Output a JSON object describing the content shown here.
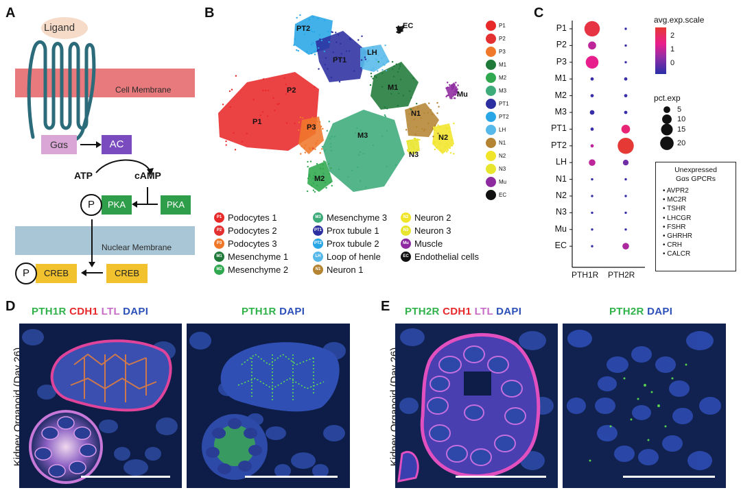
{
  "panels": {
    "a": "A",
    "b": "B",
    "c": "C",
    "d": "D",
    "e": "E"
  },
  "panel_a": {
    "ligand": "Ligand",
    "cell_membrane": "Cell Membrane",
    "nuclear_membrane": "Nuclear Membrane",
    "gas": "Gαs",
    "ac": "AC",
    "atp": "ATP",
    "camp": "cAMP",
    "pka": "PKA",
    "creb": "CREB",
    "p": "P",
    "colors": {
      "membrane": "#e8797c",
      "nuclear": "#a9c6d6",
      "gas": "#d9a6d6",
      "ac": "#7a4bbf",
      "pka": "#2f9e4a",
      "creb": "#f2c12e",
      "receptor": "#2b6b7a"
    }
  },
  "panel_b": {
    "key": [
      {
        "code": "P1",
        "color": "#e8292a"
      },
      {
        "code": "P2",
        "color": "#e33131"
      },
      {
        "code": "P3",
        "color": "#f0782b"
      },
      {
        "code": "M1",
        "color": "#1f7a3a"
      },
      {
        "code": "M2",
        "color": "#30a84f"
      },
      {
        "code": "M3",
        "color": "#3dab7a"
      },
      {
        "code": "PT1",
        "color": "#2c2fa0"
      },
      {
        "code": "PT2",
        "color": "#28a6e6"
      },
      {
        "code": "LH",
        "color": "#56b9ea"
      },
      {
        "code": "N1",
        "color": "#b58432"
      },
      {
        "code": "N2",
        "color": "#f1e52a"
      },
      {
        "code": "N3",
        "color": "#e8e52f"
      },
      {
        "code": "Mu",
        "color": "#8e2aa0"
      },
      {
        "code": "EC",
        "color": "#111111"
      }
    ],
    "cluster_labels": [
      {
        "text": "PT2"
      },
      {
        "text": "EC"
      },
      {
        "text": "PT1"
      },
      {
        "text": "LH"
      },
      {
        "text": "P2"
      },
      {
        "text": "M1"
      },
      {
        "text": "Mu"
      },
      {
        "text": "P1"
      },
      {
        "text": "P3"
      },
      {
        "text": "N1"
      },
      {
        "text": "M3"
      },
      {
        "text": "N2"
      },
      {
        "text": "N3"
      },
      {
        "text": "M2"
      }
    ],
    "legend": [
      {
        "code": "P1",
        "name": "Podocytes 1",
        "color": "#e8292a"
      },
      {
        "code": "P2",
        "name": "Podocytes 2",
        "color": "#e33131"
      },
      {
        "code": "P3",
        "name": "Podocytes 3",
        "color": "#f0782b"
      },
      {
        "code": "M1",
        "name": "Mesenchyme 1",
        "color": "#1f7a3a"
      },
      {
        "code": "M2",
        "name": "Mesenchyme 2",
        "color": "#30a84f"
      },
      {
        "code": "M3",
        "name": "Mesenchyme 3",
        "color": "#3dab7a"
      },
      {
        "code": "PT1",
        "name": "Prox tubule 1",
        "color": "#2c2fa0"
      },
      {
        "code": "PT2",
        "name": "Prox tubule 2",
        "color": "#28a6e6"
      },
      {
        "code": "LH",
        "name": "Loop of henle",
        "color": "#56b9ea"
      },
      {
        "code": "N1",
        "name": "Neuron 1",
        "color": "#b58432"
      },
      {
        "code": "N2",
        "name": "Neuron 2",
        "color": "#f1e52a"
      },
      {
        "code": "N3",
        "name": "Neuron 3",
        "color": "#e8e52f"
      },
      {
        "code": "Mu",
        "name": "Muscle",
        "color": "#8e2aa0"
      },
      {
        "code": "EC",
        "name": "Endothelial cells",
        "color": "#111111"
      }
    ]
  },
  "chart_data": {
    "type": "scatter",
    "title": "",
    "xlabel": "",
    "ylabel": "",
    "categories": [
      "PTH1R",
      "PTH2R"
    ],
    "rows": [
      "P1",
      "P2",
      "P3",
      "M1",
      "M2",
      "M3",
      "PT1",
      "PT2",
      "LH",
      "N1",
      "N2",
      "N3",
      "Mu",
      "EC"
    ],
    "pct_exp": {
      "PTH1R": [
        22,
        6,
        15,
        1,
        1,
        2,
        1,
        1,
        4,
        0.5,
        0.5,
        0.5,
        0.5,
        0.5
      ],
      "PTH2R": [
        0.5,
        0.5,
        0.5,
        1,
        1,
        1,
        7,
        24,
        3,
        0.5,
        0.5,
        0.5,
        0.5,
        4
      ]
    },
    "avg_exp_scale": {
      "PTH1R": [
        2.4,
        1.0,
        1.5,
        -0.8,
        -0.8,
        -0.8,
        -0.8,
        1.0,
        1.0,
        -0.8,
        -0.8,
        -0.8,
        -0.8,
        -0.8
      ],
      "PTH2R": [
        -0.8,
        -0.8,
        -0.8,
        -0.8,
        -0.8,
        -0.8,
        1.8,
        2.6,
        0.0,
        -0.8,
        -0.8,
        -0.8,
        -0.8,
        0.8
      ]
    },
    "color_legend": {
      "title": "avg.exp.scale",
      "ticks": [
        "2",
        "1",
        "0"
      ],
      "range": [
        -1,
        2.6
      ]
    },
    "size_legend": {
      "title": "pct.exp",
      "values": [
        5,
        10,
        15,
        20
      ]
    }
  },
  "unexpressed": {
    "title_line1": "Unexpressed",
    "title_line2": "Gαs GPCRs",
    "items": [
      "AVPR2",
      "MC2R",
      "TSHR",
      "LHCGR",
      "FSHR",
      "GHRHR",
      "CRH",
      "CALCR"
    ]
  },
  "panel_d": {
    "y_label": "Kidney Organoid (Day 26)",
    "left": {
      "c1": "PTH1R",
      "c2": "CDH1",
      "c3": "LTL",
      "c4": "DAPI"
    },
    "right": {
      "c1": "PTH1R",
      "c2": "DAPI"
    }
  },
  "panel_e": {
    "y_label": "Kidney Organoid (Day 26)",
    "left": {
      "c1": "PTH2R",
      "c2": "CDH1",
      "c3": "LTL",
      "c4": "DAPI"
    },
    "right": {
      "c1": "PTH2R",
      "c2": "DAPI"
    }
  },
  "channel_colors": {
    "green": "#2fb24a",
    "red": "#e8272a",
    "magenta": "#c86bc6",
    "blue": "#2b4fb8"
  }
}
